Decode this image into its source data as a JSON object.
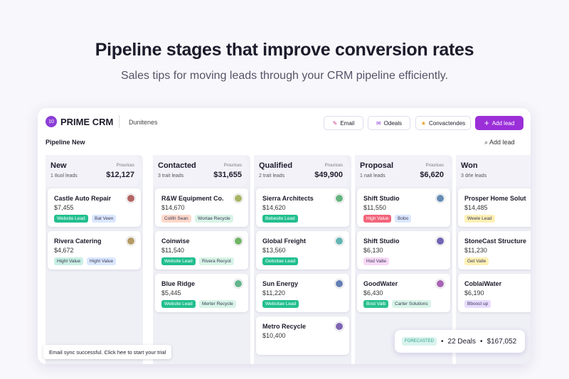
{
  "header": {
    "title": "Pipeline stages that improve conversion rates",
    "subtitle": "Sales tips for moving leads through your CRM pipeline efficiently."
  },
  "app": {
    "badge": "10",
    "brand": "PRIME CRM",
    "workspace": "Dunitenes",
    "buttons": [
      "Email",
      "Odeals",
      "Convactendes",
      "Add lead"
    ],
    "pipeline": "Pipeline New",
    "add_lead": "Add lead",
    "columns": [
      {
        "name": "New",
        "count": "1 8uol leads",
        "total_label": "Prourices",
        "total": "$12,127",
        "cards": [
          {
            "name": "Castle Auto Repair",
            "amount": "$7,455",
            "tags": [
              {
                "text": "Website Lead",
                "color": "#22bf8e"
              },
              {
                "text": "Bat Veen",
                "color": "#dbe7ff"
              }
            ]
          },
          {
            "name": "Rivera Catering",
            "amount": "$4,672",
            "tags": [
              {
                "text": "Hight Value",
                "color": "#c8efe3"
              },
              {
                "text": "Hight Value",
                "color": "#dbe7ff"
              }
            ]
          }
        ]
      },
      {
        "name": "Contacted",
        "count": "3 trait leads",
        "total_label": "Prourices",
        "total": "$31,655",
        "cards": [
          {
            "name": "R&W Equipment Co.",
            "amount": "$14,670",
            "tags": [
              {
                "text": "Colifri Sean",
                "color": "#ffd8cb"
              },
              {
                "text": "Wortae Recycle",
                "color": "#d8f4e7"
              }
            ]
          },
          {
            "name": "Coinwise",
            "amount": "$11,540",
            "tags": [
              {
                "text": "Website Lead",
                "color": "#22bf8e"
              },
              {
                "text": "Rivera Recyot",
                "color": "#d8f4e7"
              }
            ]
          },
          {
            "name": "Blue Ridge",
            "amount": "$5,445",
            "tags": [
              {
                "text": "Website Lead",
                "color": "#22bf8e"
              },
              {
                "text": "Merter Recycle",
                "color": "#d8f4e7"
              }
            ]
          }
        ]
      },
      {
        "name": "Qualified",
        "count": "2 trait leads",
        "total_label": "Prourices",
        "total": "$49,900",
        "cards": [
          {
            "name": "Sierra Architects",
            "amount": "$14,620",
            "tags": [
              {
                "text": "Bebesite Lead",
                "color": "#22bf8e"
              }
            ]
          },
          {
            "name": "Global Freight",
            "amount": "$13,560",
            "tags": [
              {
                "text": "Gebsitae Lead",
                "color": "#22bf8e"
              }
            ]
          },
          {
            "name": "Sun Energy",
            "amount": "$11,220",
            "tags": [
              {
                "text": "Websitae Lead",
                "color": "#22bf8e"
              }
            ]
          },
          {
            "name": "Metro Recycle",
            "amount": "$10,400",
            "tags": []
          }
        ]
      },
      {
        "name": "Proposal",
        "count": "1 nait leads",
        "total_label": "Prourices",
        "total": "$6,620",
        "cards": [
          {
            "name": "Shift Studio",
            "amount": "$11,550",
            "tags": [
              {
                "text": "High Value",
                "color": "#f2647a"
              },
              {
                "text": "Bobo",
                "color": "#dbe7ff"
              }
            ]
          },
          {
            "name": "Shift Studio",
            "amount": "$6,130",
            "tags": [
              {
                "text": "Hod Valte",
                "color": "#f7d8f6"
              }
            ]
          },
          {
            "name": "GoodWater",
            "amount": "$6,430",
            "tags": [
              {
                "text": "Bost Valb",
                "color": "#29c08f"
              },
              {
                "text": "Carter Solutions",
                "color": "#d8f4e7"
              }
            ]
          }
        ]
      },
      {
        "name": "Won",
        "count": "3 drle leads",
        "cards": [
          {
            "name": "Prosper Home Solut",
            "amount": "$14,485",
            "tags": [
              {
                "text": "Weele Lead",
                "color": "#fff0b5"
              }
            ]
          },
          {
            "name": "StoneCast Structure",
            "amount": "$11,230",
            "tags": [
              {
                "text": "Get Valle",
                "color": "#fff0b5"
              }
            ]
          },
          {
            "name": "CoblaiWater",
            "amount": "$6,190",
            "tags": [
              {
                "text": "Bboost up",
                "color": "#e8dcff"
              }
            ]
          }
        ]
      }
    ],
    "toast": "Email sync successful. Click hee to start your trial",
    "forecast": {
      "label": "FORECASTED",
      "deals": "22 Deals",
      "amount": "$167,052"
    }
  }
}
